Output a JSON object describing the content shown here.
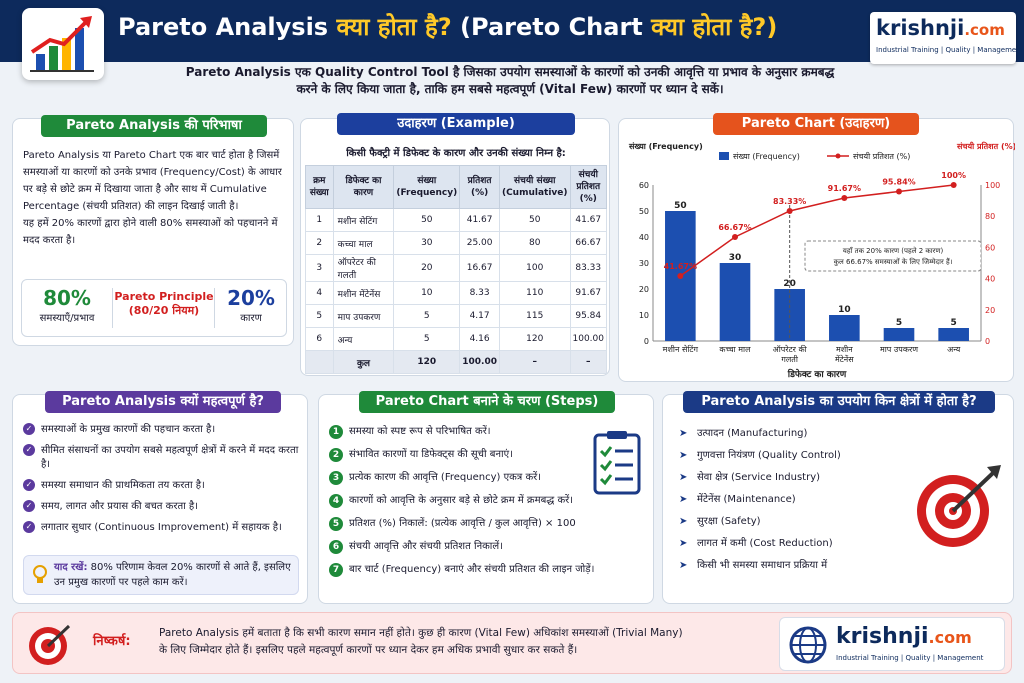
{
  "header": {
    "title_part1": "Pareto Analysis ",
    "title_part2": "क्या होता है? ",
    "title_part3": "(Pareto Chart ",
    "title_part4": "क्या होता है?)",
    "intro_line1": "Pareto Analysis एक Quality Control Tool है जिसका उपयोग समस्याओं के कारणों को उनकी आवृत्ति या प्रभाव के अनुसार क्रमबद्ध",
    "intro_line2": "करने के लिए किया जाता है, ताकि हम सबसे महत्वपूर्ण (Vital Few) कारणों पर ध्यान दे सकें।"
  },
  "logo": {
    "brand": "krishnji",
    "dot": ".com",
    "tagline": "Industrial Training | Quality | Management"
  },
  "definition": {
    "title": "Pareto Analysis की परिभाषा",
    "text1": "Pareto Analysis या Pareto Chart एक बार चार्ट होता है जिसमें समस्याओं या कारणों को उनके प्रभाव (Frequency/Cost) के आधार पर बड़े से छोटे क्रम में दिखाया जाता है और साथ में Cumulative Percentage (संचयी प्रतिशत) की लाइन दिखाई जाती है।",
    "text2": "यह हमें 20% कारणों द्वारा होने वाली 80% समस्याओं को पहचानने में मदद करता है।",
    "stat1_value": "80%",
    "stat1_label": "समस्याएँ/प्रभाव",
    "principle_title": "Pareto Principle",
    "principle_sub": "(80/20 नियम)",
    "stat2_value": "20%",
    "stat2_label": "कारण"
  },
  "example": {
    "title": "उदाहरण (Example)",
    "subtitle": "किसी फैक्ट्री में डिफेक्ट के कारण और उनकी संख्या निम्न है:",
    "headers": [
      "क्रम संख्या",
      "डिफेक्ट का कारण",
      "संख्या (Frequency)",
      "प्रतिशत (%)",
      "संचयी संख्या (Cumulative)",
      "संचयी प्रतिशत (%)"
    ],
    "rows": [
      [
        "1",
        "मशीन सेटिंग",
        "50",
        "41.67",
        "50",
        "41.67"
      ],
      [
        "2",
        "कच्चा माल",
        "30",
        "25.00",
        "80",
        "66.67"
      ],
      [
        "3",
        "ऑपरेटर की गलती",
        "20",
        "16.67",
        "100",
        "83.33"
      ],
      [
        "4",
        "मशीन मेंटेनेंस",
        "10",
        "8.33",
        "110",
        "91.67"
      ],
      [
        "5",
        "माप उपकरण",
        "5",
        "4.17",
        "115",
        "95.84"
      ],
      [
        "6",
        "अन्य",
        "5",
        "4.16",
        "120",
        "100.00"
      ]
    ],
    "total": [
      "",
      "कुल",
      "120",
      "100.00",
      "–",
      "–"
    ]
  },
  "chart": {
    "title": "Pareto Chart (उदाहरण)",
    "left_axis_label": "संख्या (Frequency)",
    "right_axis_label": "संचयी प्रतिशत (%)",
    "legend_bar": "संख्या (Frequency)",
    "legend_line": "संचयी प्रतिशत (%)",
    "xlabel": "डिफेक्ट का कारण",
    "annotation_line1": "यहाँ तक 20% कारण (पहले 2 कारण)",
    "annotation_line2": "कुल 66.67% समस्याओं के लिए जिम्मेदार हैं।"
  },
  "chart_data": {
    "type": "bar",
    "categories": [
      "मशीन सेटिंग",
      "कच्चा माल",
      "ऑपरेटर की गलती",
      "मशीन मेंटेनेंस",
      "माप उपकरण",
      "अन्य"
    ],
    "series": [
      {
        "name": "संख्या (Frequency)",
        "type": "bar",
        "values": [
          50,
          30,
          20,
          10,
          5,
          5
        ],
        "color": "#1c4fb0"
      },
      {
        "name": "संचयी प्रतिशत (%)",
        "type": "line",
        "values": [
          41.67,
          66.67,
          83.33,
          91.67,
          95.84,
          100
        ],
        "labels": [
          "41.67%",
          "66.67%",
          "83.33%",
          "91.67%",
          "95.84%",
          "100%"
        ],
        "color": "#d21f1f"
      }
    ],
    "ylim": [
      0,
      60
    ],
    "y2lim": [
      0,
      100
    ],
    "yticks": [
      0,
      10,
      20,
      30,
      40,
      50,
      60
    ],
    "y2ticks": [
      0,
      20,
      40,
      60,
      80,
      100
    ]
  },
  "importance": {
    "title": "Pareto Analysis क्यों महत्वपूर्ण है?",
    "items": [
      "समस्याओं के प्रमुख कारणों की पहचान करता है।",
      "सीमित संसाधनों का उपयोग सबसे महत्वपूर्ण क्षेत्रों में करने में मदद करता है।",
      "समस्या समाधान की प्राथमिकता तय करता है।",
      "समय, लागत और प्रयास की बचत करता है।",
      "लगातार सुधार (Continuous Improvement) में सहायक है।"
    ],
    "remember_label": "याद रखें:",
    "remember_text": "80% परिणाम केवल 20% कारणों से आते हैं, इसलिए उन प्रमुख कारणों पर पहले काम करें।"
  },
  "steps": {
    "title": "Pareto Chart बनाने के चरण (Steps)",
    "items": [
      "समस्या को स्पष्ट रूप से परिभाषित करें।",
      "संभावित कारणों या डिफेक्ट्स की सूची बनाएं।",
      "प्रत्येक कारण की आवृत्ति (Frequency) एकत्र करें।",
      "कारणों को आवृत्ति के अनुसार बड़े से छोटे क्रम में क्रमबद्ध करें।",
      "प्रतिशत (%) निकालें: (प्रत्येक आवृत्ति / कुल आवृत्ति) × 100",
      "संचयी आवृत्ति और संचयी प्रतिशत निकालें।",
      "बार चार्ट (Frequency) बनाएं और संचयी प्रतिशत की लाइन जोड़ें।"
    ]
  },
  "uses": {
    "title": "Pareto Analysis का उपयोग किन क्षेत्रों में होता है?",
    "items": [
      "उत्पादन (Manufacturing)",
      "गुणवत्ता नियंत्रण (Quality Control)",
      "सेवा क्षेत्र (Service Industry)",
      "मेंटेनेंस (Maintenance)",
      "सुरक्षा (Safety)",
      "लागत में कमी (Cost Reduction)",
      "किसी भी समस्या समाधान प्रक्रिया में"
    ]
  },
  "conclusion": {
    "label": "निष्कर्ष:",
    "line1": "Pareto Analysis हमें बताता है कि सभी कारण समान नहीं होते। कुछ ही कारण (Vital Few) अधिकांश समस्याओं (Trivial Many)",
    "line2": "के लिए जिम्मेदार होते हैं। इसलिए पहले महत्वपूर्ण कारणों पर ध्यान देकर हम अधिक प्रभावी सुधार कर सकते हैं।"
  }
}
